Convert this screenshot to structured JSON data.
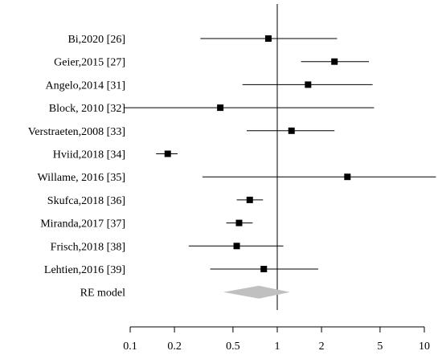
{
  "chart_data": {
    "type": "forest",
    "title": "",
    "xlabel": "",
    "ylabel": "",
    "x_scale": "log",
    "xlim": [
      0.1,
      10
    ],
    "reference_line": 1,
    "grid": false,
    "x_ticks": [
      0.1,
      0.2,
      0.5,
      1,
      2,
      5,
      10
    ],
    "x_tick_labels": [
      "0.1",
      "0.2",
      "0.5",
      "1",
      "2",
      "5",
      "10"
    ],
    "studies": [
      {
        "label": "Bi,2020 [26]",
        "estimate": 0.87,
        "lower": 0.3,
        "upper": 2.55
      },
      {
        "label": "Geier,2015 [27]",
        "estimate": 2.45,
        "lower": 1.45,
        "upper": 4.2
      },
      {
        "label": "Angelo,2014 [31]",
        "estimate": 1.62,
        "lower": 0.58,
        "upper": 4.45
      },
      {
        "label": "Block, 2010 [32]",
        "estimate": 0.41,
        "lower": 0.09,
        "upper": 4.55
      },
      {
        "label": "Verstraeten,2008 [33]",
        "estimate": 1.25,
        "lower": 0.62,
        "upper": 2.45
      },
      {
        "label": "Hviid,2018 [34]",
        "estimate": 0.18,
        "lower": 0.15,
        "upper": 0.21
      },
      {
        "label": "Willame, 2016 [35]",
        "estimate": 3.0,
        "lower": 0.31,
        "upper": 12.0
      },
      {
        "label": "Skufca,2018 [36]",
        "estimate": 0.65,
        "lower": 0.53,
        "upper": 0.8
      },
      {
        "label": "Miranda,2017 [37]",
        "estimate": 0.55,
        "lower": 0.45,
        "upper": 0.68
      },
      {
        "label": "Frisch,2018 [38]",
        "estimate": 0.53,
        "lower": 0.25,
        "upper": 1.1
      },
      {
        "label": "Lehtien,2016 [39]",
        "estimate": 0.81,
        "lower": 0.35,
        "upper": 1.9
      }
    ],
    "pooled": {
      "label": "RE model",
      "estimate": 0.75,
      "lower": 0.43,
      "upper": 1.22,
      "color": "#c0c0c0"
    }
  }
}
